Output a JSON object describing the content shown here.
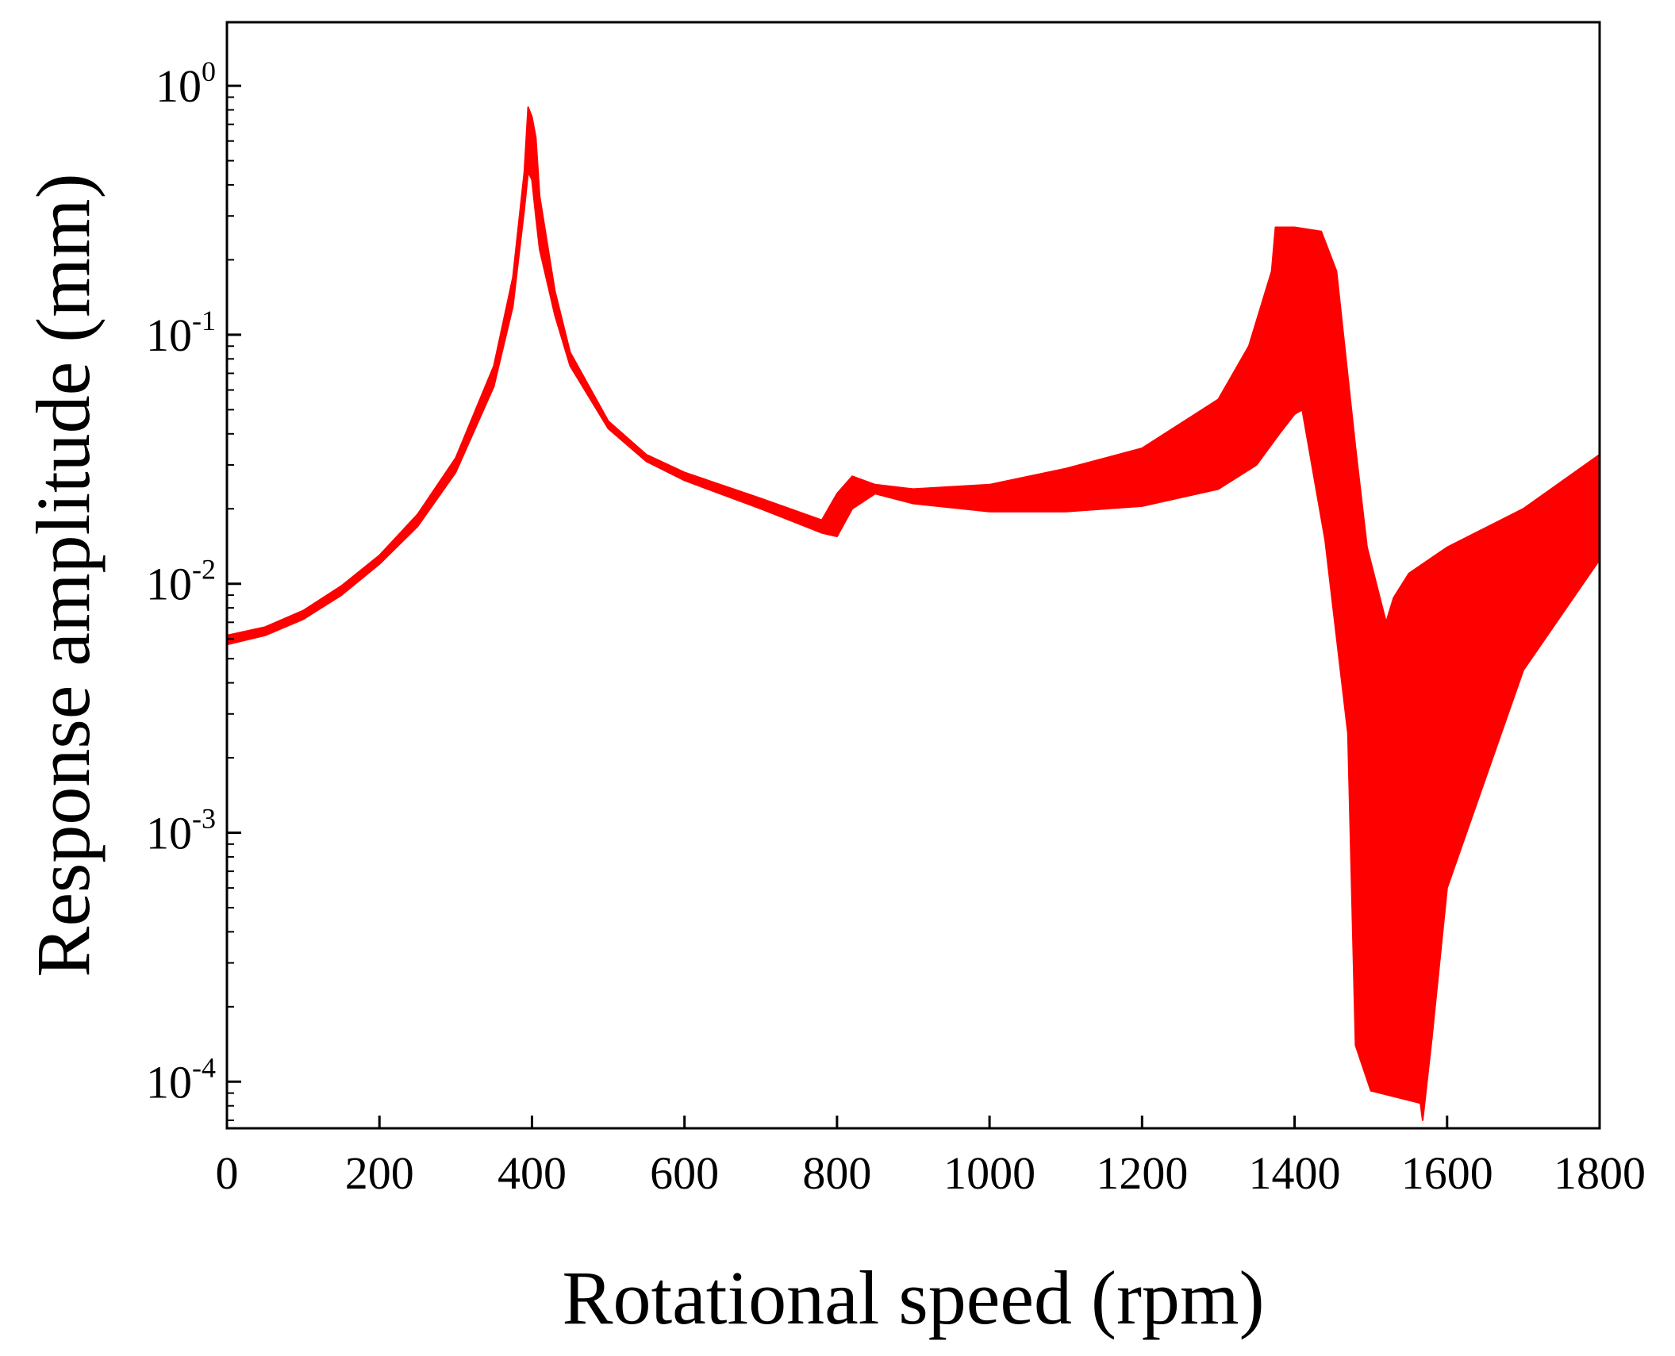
{
  "chart_data": {
    "type": "area",
    "title": "",
    "xlabel": "Rotational speed (rpm)",
    "ylabel": "Response amplitude (mm)",
    "xlim": [
      0,
      1800
    ],
    "ylim": [
      6.5e-05,
      1.8
    ],
    "yscale": "log",
    "grid": false,
    "legend": "none",
    "series_color": "#ff0000",
    "x_ticks": [
      {
        "value": 0,
        "label": "0"
      },
      {
        "value": 200,
        "label": "200"
      },
      {
        "value": 400,
        "label": "400"
      },
      {
        "value": 600,
        "label": "600"
      },
      {
        "value": 800,
        "label": "800"
      },
      {
        "value": 1000,
        "label": "1000"
      },
      {
        "value": 1200,
        "label": "1200"
      },
      {
        "value": 1400,
        "label": "1400"
      },
      {
        "value": 1600,
        "label": "1600"
      },
      {
        "value": 1800,
        "label": "1800"
      }
    ],
    "y_ticks": [
      {
        "value": 1,
        "base": "10",
        "exp": "0"
      },
      {
        "value": 0.1,
        "base": "10",
        "exp": "-1"
      },
      {
        "value": 0.01,
        "base": "10",
        "exp": "-2"
      },
      {
        "value": 0.001,
        "base": "10",
        "exp": "-3"
      },
      {
        "value": 0.0001,
        "base": "10",
        "exp": "-4"
      }
    ],
    "upper_envelope": {
      "x": [
        0,
        50,
        100,
        150,
        200,
        250,
        300,
        350,
        375,
        390,
        395,
        400,
        405,
        410,
        430,
        450,
        500,
        550,
        600,
        700,
        780,
        800,
        820,
        850,
        900,
        1000,
        1100,
        1200,
        1300,
        1340,
        1370,
        1375,
        1400,
        1435,
        1455,
        1480,
        1495,
        1520,
        1530,
        1550,
        1600,
        1700,
        1800
      ],
      "y": [
        0.0062,
        0.0067,
        0.0078,
        0.0098,
        0.013,
        0.019,
        0.032,
        0.075,
        0.17,
        0.45,
        0.82,
        0.75,
        0.62,
        0.36,
        0.15,
        0.085,
        0.045,
        0.033,
        0.028,
        0.022,
        0.018,
        0.023,
        0.027,
        0.025,
        0.024,
        0.025,
        0.029,
        0.035,
        0.055,
        0.09,
        0.18,
        0.27,
        0.27,
        0.26,
        0.18,
        0.035,
        0.014,
        0.007,
        0.0088,
        0.011,
        0.014,
        0.02,
        0.033
      ]
    },
    "lower_envelope": {
      "x": [
        0,
        50,
        100,
        150,
        200,
        250,
        300,
        350,
        375,
        390,
        395,
        400,
        405,
        410,
        430,
        450,
        500,
        550,
        600,
        700,
        780,
        800,
        820,
        850,
        900,
        1000,
        1100,
        1200,
        1300,
        1350,
        1380,
        1400,
        1410,
        1440,
        1470,
        1480,
        1500,
        1565,
        1568,
        1580,
        1600,
        1700,
        1800
      ],
      "y": [
        0.0057,
        0.0062,
        0.0072,
        0.009,
        0.012,
        0.017,
        0.028,
        0.062,
        0.13,
        0.32,
        0.45,
        0.42,
        0.3,
        0.22,
        0.12,
        0.075,
        0.042,
        0.031,
        0.026,
        0.02,
        0.016,
        0.0155,
        0.02,
        0.023,
        0.021,
        0.0195,
        0.0195,
        0.0205,
        0.024,
        0.03,
        0.04,
        0.048,
        0.05,
        0.015,
        0.0025,
        0.00014,
        9.2e-05,
        8.2e-05,
        7e-05,
        0.00015,
        0.0006,
        0.0045,
        0.0125
      ]
    }
  }
}
